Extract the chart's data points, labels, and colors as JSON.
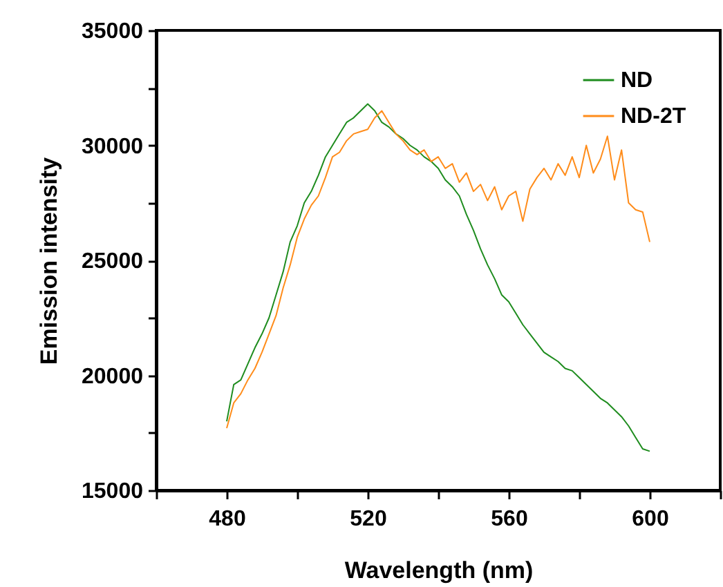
{
  "chart_data": {
    "type": "line",
    "xlabel": "Wavelength (nm)",
    "ylabel": "Emission intensity",
    "x": [
      480,
      482,
      484,
      486,
      488,
      490,
      492,
      494,
      496,
      498,
      500,
      502,
      504,
      506,
      508,
      510,
      512,
      514,
      516,
      518,
      520,
      522,
      524,
      526,
      528,
      530,
      532,
      534,
      536,
      538,
      540,
      542,
      544,
      546,
      548,
      550,
      552,
      554,
      556,
      558,
      560,
      562,
      564,
      566,
      568,
      570,
      572,
      574,
      576,
      578,
      580,
      582,
      584,
      586,
      588,
      590,
      592,
      594,
      596,
      598,
      600
    ],
    "series": [
      {
        "name": "ND",
        "color": "#1e8c1e",
        "values": [
          18000,
          19600,
          19800,
          20500,
          21200,
          21800,
          22500,
          23500,
          24500,
          25800,
          26500,
          27500,
          28000,
          28700,
          29500,
          30000,
          30500,
          31000,
          31200,
          31500,
          31800,
          31500,
          31000,
          30800,
          30500,
          30300,
          30000,
          29800,
          29500,
          29300,
          29000,
          28500,
          28200,
          27800,
          27000,
          26300,
          25500,
          24800,
          24200,
          23500,
          23200,
          22700,
          22200,
          21800,
          21400,
          21000,
          20800,
          20600,
          20300,
          20200,
          19900,
          19600,
          19300,
          19000,
          18800,
          18500,
          18200,
          17800,
          17300,
          16800,
          16700
        ]
      },
      {
        "name": "ND-2T",
        "color": "#ff8c1a",
        "values": [
          17700,
          18800,
          19200,
          19800,
          20300,
          21000,
          21800,
          22600,
          23800,
          24800,
          26000,
          26800,
          27400,
          27800,
          28600,
          29500,
          29700,
          30200,
          30500,
          30600,
          30700,
          31200,
          31500,
          31000,
          30500,
          30200,
          29800,
          29600,
          29800,
          29300,
          29500,
          29000,
          29200,
          28400,
          28800,
          28000,
          28300,
          27600,
          28200,
          27200,
          27800,
          28000,
          26700,
          28100,
          28600,
          29000,
          28500,
          29200,
          28700,
          29500,
          28600,
          30000,
          28800,
          29400,
          30400,
          28500,
          29800,
          27500,
          27200,
          27100,
          25800
        ]
      }
    ],
    "xlim": [
      460,
      620
    ],
    "xticks": [
      {
        "value": 460,
        "label": null
      },
      480,
      {
        "value": 500,
        "label": null
      },
      520,
      {
        "value": 540,
        "label": null
      },
      560,
      {
        "value": 580,
        "label": null
      },
      600,
      {
        "value": 620,
        "label": null
      }
    ],
    "ylim": [
      15000,
      35000
    ],
    "yticks": [
      15000,
      {
        "value": 17500,
        "label": null
      },
      20000,
      {
        "value": 22500,
        "label": null
      },
      25000,
      {
        "value": 27500,
        "label": null
      },
      30000,
      {
        "value": 32500,
        "label": null
      },
      35000
    ],
    "legend": "top right",
    "grid": false,
    "marker": "none",
    "line_style": "solid"
  }
}
